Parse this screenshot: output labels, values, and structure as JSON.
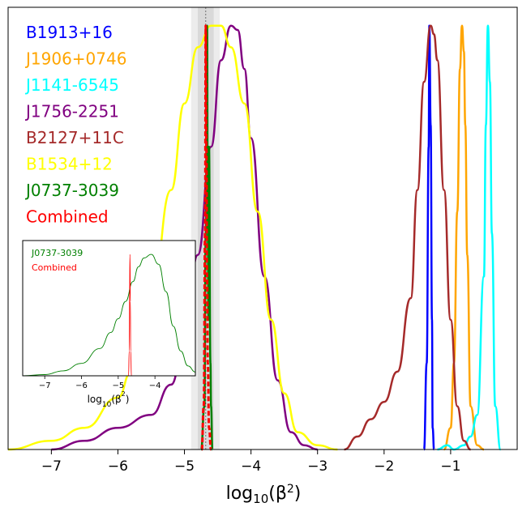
{
  "chart_data": {
    "type": "line",
    "xlabel": "log10(β²)",
    "xlim": [
      -7.65,
      0.0
    ],
    "ylim": [
      0,
      1.0
    ],
    "xticks": [
      -7,
      -6,
      -5,
      -4,
      -3,
      -2,
      -1
    ],
    "tick_labels": [
      "−7",
      "−6",
      "−5",
      "−4",
      "−3",
      "−2",
      "−1"
    ],
    "legend_placement": "top-left",
    "shaded_band": {
      "x_outer": [
        -4.9,
        -4.47
      ],
      "x_inner": [
        -4.8,
        -4.56
      ],
      "x_line": -4.68
    },
    "series": [
      {
        "name": "B1913+16",
        "color": "#0000ff",
        "x": [
          -1.4,
          -1.36,
          -1.33,
          -1.32,
          -1.3,
          -1.28,
          -1.27,
          -1.25
        ],
        "y": [
          0,
          0.2,
          0.7,
          0.98,
          0.75,
          0.3,
          0.05,
          0
        ]
      },
      {
        "name": "J1906+0746",
        "color": "#ffa500",
        "x": [
          -1.1,
          -1.0,
          -0.95,
          -0.9,
          -0.86,
          -0.83,
          -0.8,
          -0.78,
          -0.75,
          -0.7,
          -0.6,
          -0.5
        ],
        "y": [
          0.0,
          0.05,
          0.2,
          0.55,
          0.88,
          0.98,
          0.92,
          0.75,
          0.45,
          0.1,
          0.01,
          0.0
        ]
      },
      {
        "name": "J1141-6545",
        "color": "#00ffff",
        "x": [
          -1.2,
          -1.05,
          -0.95,
          -0.8,
          -0.7,
          -0.6,
          -0.5,
          -0.47,
          -0.44,
          -0.41,
          -0.38,
          -0.33,
          -0.25
        ],
        "y": [
          0.0,
          0.01,
          0.0,
          0.01,
          0.03,
          0.08,
          0.4,
          0.75,
          0.98,
          0.85,
          0.5,
          0.1,
          0.0
        ]
      },
      {
        "name": "J1756-2251",
        "color": "#800080",
        "x": [
          -7.0,
          -6.5,
          -6.0,
          -5.5,
          -5.2,
          -5.0,
          -4.8,
          -4.6,
          -4.45,
          -4.3,
          -4.2,
          -4.1,
          -4.0,
          -3.8,
          -3.6,
          -3.4,
          -3.2,
          -3.0
        ],
        "y": [
          0.0,
          0.02,
          0.05,
          0.08,
          0.15,
          0.25,
          0.45,
          0.7,
          0.9,
          0.98,
          0.97,
          0.88,
          0.72,
          0.4,
          0.16,
          0.04,
          0.01,
          0.0
        ]
      },
      {
        "name": "B2127+11C",
        "color": "#a52a2a",
        "x": [
          -2.6,
          -2.4,
          -2.2,
          -2.0,
          -1.8,
          -1.6,
          -1.5,
          -1.4,
          -1.3,
          -1.25,
          -1.2,
          -1.1,
          -1.0,
          -0.9,
          -0.8,
          -0.7
        ],
        "y": [
          0.0,
          0.03,
          0.07,
          0.11,
          0.18,
          0.35,
          0.6,
          0.85,
          0.98,
          0.96,
          0.9,
          0.6,
          0.3,
          0.1,
          0.02,
          0.0
        ]
      },
      {
        "name": "B1534+12",
        "color": "#ffff00",
        "x": [
          -7.65,
          -7.0,
          -6.5,
          -6.0,
          -5.8,
          -5.5,
          -5.2,
          -5.0,
          -4.8,
          -4.6,
          -4.45,
          -4.3,
          -4.1,
          -3.9,
          -3.7,
          -3.5,
          -3.3,
          -3.0,
          -2.7
        ],
        "y": [
          0.0,
          0.02,
          0.05,
          0.12,
          0.18,
          0.35,
          0.6,
          0.8,
          0.93,
          0.98,
          0.98,
          0.93,
          0.8,
          0.55,
          0.3,
          0.13,
          0.04,
          0.01,
          0.0
        ]
      },
      {
        "name": "J0737-3039",
        "color": "#008000",
        "x": [
          -4.75,
          -4.7,
          -4.68,
          -4.66,
          -4.65,
          -4.64,
          -4.63,
          -4.61,
          -4.6,
          -4.58
        ],
        "y": [
          0.0,
          0.1,
          0.5,
          0.98,
          0.5,
          0.3,
          0.7,
          0.2,
          0.1,
          0.0
        ]
      },
      {
        "name": "Combined",
        "color": "#ff0000",
        "dashed": true,
        "x": [
          -4.74,
          -4.71,
          -4.69,
          -4.68,
          -4.67,
          -4.66,
          -4.65,
          -4.63,
          -4.6
        ],
        "y": [
          0.0,
          0.1,
          0.5,
          0.98,
          0.7,
          0.4,
          0.2,
          0.05,
          0.0
        ]
      }
    ],
    "inset": {
      "xlabel": "log10(β²)",
      "xlim": [
        -7.6,
        -2.9
      ],
      "xticks": [
        -7,
        -6,
        -5,
        -4
      ],
      "tick_labels": [
        "−7",
        "−6",
        "−5",
        "−4"
      ],
      "legend": [
        {
          "name": "J0737-3039",
          "color": "#008000"
        },
        {
          "name": "Combined",
          "color": "#ff0000"
        }
      ],
      "series": [
        {
          "name": "J0737-3039",
          "color": "#008000",
          "x": [
            -7.6,
            -7.0,
            -6.5,
            -6.0,
            -5.5,
            -5.2,
            -5.0,
            -4.8,
            -4.6,
            -4.45,
            -4.3,
            -4.1,
            -3.9,
            -3.7,
            -3.5,
            -3.3,
            -3.1,
            -2.9
          ],
          "y": [
            0.0,
            0.01,
            0.04,
            0.1,
            0.22,
            0.35,
            0.46,
            0.6,
            0.76,
            0.88,
            0.95,
            0.98,
            0.9,
            0.68,
            0.4,
            0.2,
            0.08,
            0.03
          ]
        },
        {
          "name": "Combined",
          "color": "#ff0000",
          "x": [
            -4.72,
            -4.7,
            -4.69,
            -4.68,
            -4.67,
            -4.66,
            -4.64
          ],
          "y": [
            0.0,
            0.2,
            0.7,
            0.98,
            0.6,
            0.2,
            0.0
          ]
        }
      ]
    }
  }
}
